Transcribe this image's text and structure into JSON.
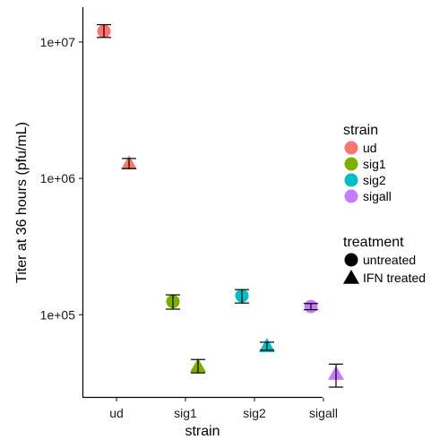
{
  "chart_data": {
    "type": "scatter",
    "title": "",
    "xlabel": "strain",
    "ylabel": "Titer at 36 hours (pfu/mL)",
    "y_scale": "log10",
    "ylim": [
      25000,
      18000000
    ],
    "grid": false,
    "categories": [
      "ud",
      "sig1",
      "sig2",
      "sigall"
    ],
    "y_ticks": [
      {
        "value": 100000,
        "label": "1e+05"
      },
      {
        "value": 1000000,
        "label": "1e+06"
      },
      {
        "value": 10000000,
        "label": "1e+07"
      }
    ],
    "colors": {
      "ud": "#F8766D",
      "sig1": "#7CAE00",
      "sig2": "#00BFC4",
      "sigall": "#C77CFF"
    },
    "points": [
      {
        "strain": "ud",
        "treatment": "untreated",
        "y": 12000000,
        "ymin": 10800000,
        "ymax": 13400000
      },
      {
        "strain": "ud",
        "treatment": "IFN treated",
        "y": 1290000,
        "ymin": 1180000,
        "ymax": 1400000
      },
      {
        "strain": "sig1",
        "treatment": "untreated",
        "y": 125000,
        "ymin": 110000,
        "ymax": 140000
      },
      {
        "strain": "sig1",
        "treatment": "IFN treated",
        "y": 42000,
        "ymin": 37500,
        "ymax": 47000
      },
      {
        "strain": "sig2",
        "treatment": "untreated",
        "y": 138000,
        "ymin": 122000,
        "ymax": 153000
      },
      {
        "strain": "sig2",
        "treatment": "IFN treated",
        "y": 59000,
        "ymin": 55000,
        "ymax": 63000
      },
      {
        "strain": "sigall",
        "treatment": "untreated",
        "y": 115000,
        "ymin": 109000,
        "ymax": 121000
      },
      {
        "strain": "sigall",
        "treatment": "IFN treated",
        "y": 37000,
        "ymin": 29500,
        "ymax": 43500
      }
    ],
    "legend": {
      "position": "right",
      "strain": {
        "title": "strain",
        "entries": [
          "ud",
          "sig1",
          "sig2",
          "sigall"
        ]
      },
      "treatment": {
        "title": "treatment",
        "entries": [
          {
            "label": "untreated",
            "shape": "circle"
          },
          {
            "label": "IFN treated",
            "shape": "triangle"
          }
        ]
      }
    }
  }
}
